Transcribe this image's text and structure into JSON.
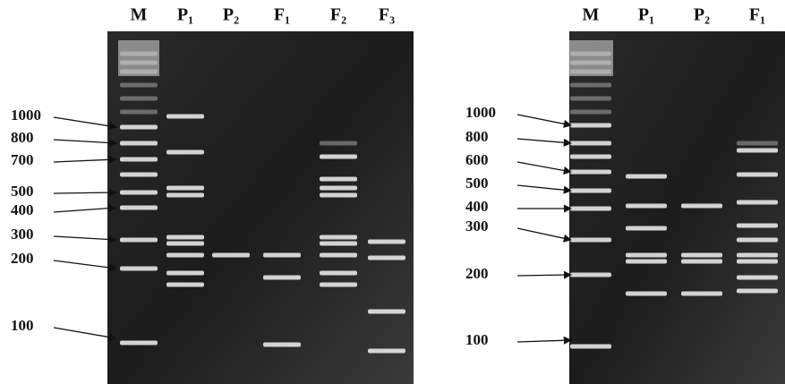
{
  "panels": [
    {
      "lanes": [
        "M",
        "P₁",
        "P₂",
        "F₁",
        "F₂",
        "F₃"
      ],
      "markers": [
        "1000",
        "800",
        "700",
        "500",
        "400",
        "300",
        "200",
        "100"
      ]
    },
    {
      "lanes": [
        "M",
        "P₁",
        "P₂",
        "F₁"
      ],
      "markers": [
        "1000",
        "800",
        "600",
        "500",
        "400",
        "300",
        "200",
        "100"
      ]
    }
  ]
}
